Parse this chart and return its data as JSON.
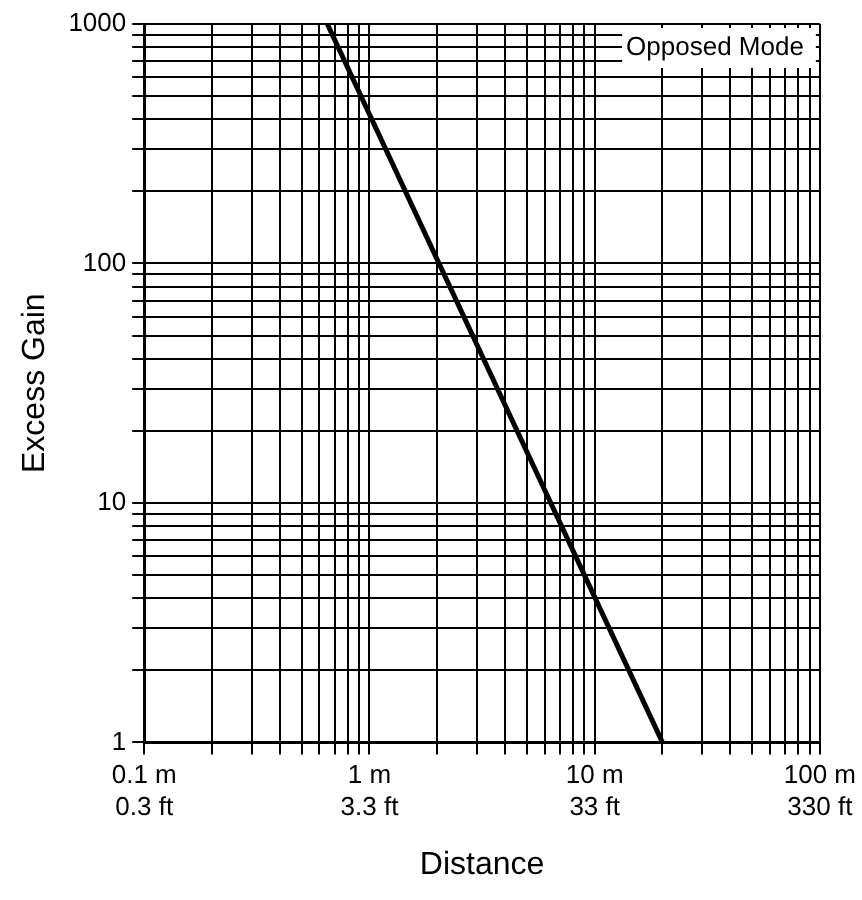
{
  "chart_data": {
    "type": "line",
    "xlabel": "Distance",
    "ylabel": "Excess Gain",
    "log": "xy",
    "grid": true,
    "legend": false,
    "marker": "none",
    "line_style": "solid",
    "x": [
      0.65,
      20
    ],
    "series": [
      {
        "color": "#000000",
        "values": [
          1000,
          1
        ]
      }
    ],
    "xlim": [
      0.1,
      100
    ],
    "ylim": [
      1,
      1000
    ],
    "xticks": [
      {
        "value": 0.1,
        "label": "0.1 m"
      },
      {
        "value": 0.2,
        "label": null
      },
      {
        "value": 0.3,
        "label": null
      },
      {
        "value": 0.4,
        "label": null
      },
      {
        "value": 0.5,
        "label": null
      },
      {
        "value": 0.6,
        "label": null
      },
      {
        "value": 0.7,
        "label": null
      },
      {
        "value": 0.8,
        "label": null
      },
      {
        "value": 0.9,
        "label": null
      },
      {
        "value": 1,
        "label": "1 m"
      },
      {
        "value": 2,
        "label": null
      },
      {
        "value": 3,
        "label": null
      },
      {
        "value": 4,
        "label": null
      },
      {
        "value": 5,
        "label": null
      },
      {
        "value": 6,
        "label": null
      },
      {
        "value": 7,
        "label": null
      },
      {
        "value": 8,
        "label": null
      },
      {
        "value": 9,
        "label": null
      },
      {
        "value": 10,
        "label": "10 m"
      },
      {
        "value": 20,
        "label": null
      },
      {
        "value": 30,
        "label": null
      },
      {
        "value": 40,
        "label": null
      },
      {
        "value": 50,
        "label": null
      },
      {
        "value": 60,
        "label": null
      },
      {
        "value": 70,
        "label": null
      },
      {
        "value": 80,
        "label": null
      },
      {
        "value": 90,
        "label": null
      },
      {
        "value": 100,
        "label": "100 m"
      }
    ],
    "yticks": [
      1,
      {
        "value": 2,
        "label": null
      },
      {
        "value": 3,
        "label": null
      },
      {
        "value": 4,
        "label": null
      },
      {
        "value": 5,
        "label": null
      },
      {
        "value": 6,
        "label": null
      },
      {
        "value": 7,
        "label": null
      },
      {
        "value": 8,
        "label": null
      },
      {
        "value": 9,
        "label": null
      },
      10,
      {
        "value": 20,
        "label": null
      },
      {
        "value": 30,
        "label": null
      },
      {
        "value": 40,
        "label": null
      },
      {
        "value": 50,
        "label": null
      },
      {
        "value": 60,
        "label": null
      },
      {
        "value": 70,
        "label": null
      },
      {
        "value": 80,
        "label": null
      },
      {
        "value": 90,
        "label": null
      },
      100,
      {
        "value": 200,
        "label": null
      },
      {
        "value": 300,
        "label": null
      },
      {
        "value": 400,
        "label": null
      },
      {
        "value": 500,
        "label": null
      },
      {
        "value": 600,
        "label": null
      },
      {
        "value": 700,
        "label": null
      },
      {
        "value": 800,
        "label": null
      },
      {
        "value": 900,
        "label": null
      },
      1000
    ],
    "annotations": [
      "Opposed Mode",
      "0.3 ft",
      "3.3 ft",
      "33 ft",
      "330 ft"
    ]
  }
}
